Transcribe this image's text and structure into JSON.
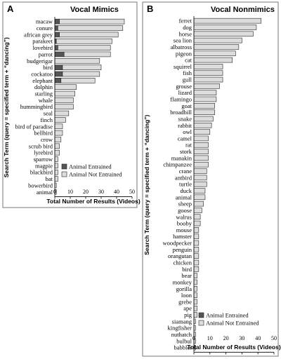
{
  "colors": {
    "entrained": "#555555",
    "not_entrained": "#dcdcdc",
    "bar_outline": "#222222",
    "frame": "#777777"
  },
  "chart_data": [
    {
      "type": "bar",
      "orientation": "horizontal",
      "stacked": true,
      "panel": "A",
      "title": "Vocal Mimics",
      "xlabel": "Total Number of Results (Videos)",
      "ylabel": "Search Term (query = specified term + “dancing”)",
      "xlim": [
        0,
        50
      ],
      "xticks": [
        0,
        10,
        20,
        30,
        40,
        50
      ],
      "legend": "bottom-right",
      "grid": false,
      "categories": [
        "macaw",
        "conure",
        "african grey",
        "parakeet",
        "lovebird",
        "parrot",
        "budgerigar",
        "bird",
        "cockatoo",
        "elephant",
        "dolphin",
        "starling",
        "whale",
        "hummingbird",
        "seal",
        "finch",
        "bird of paradise",
        "bellbird",
        "crow",
        "scrub bird",
        "lyrebird",
        "sparrow",
        "magpie",
        "blackbird",
        "bat",
        "bowerbird",
        "animal"
      ],
      "series": [
        {
          "name": "Animal Entrained",
          "values": [
            3,
            2,
            3,
            1,
            2,
            6,
            0,
            5,
            5,
            4,
            0,
            0,
            0,
            0,
            0,
            0,
            0,
            0,
            0,
            0,
            0,
            0,
            0,
            0,
            0,
            0,
            0
          ]
        },
        {
          "name": "Animal Not Entrained",
          "values": [
            42,
            42,
            38,
            36,
            34,
            30,
            29,
            25,
            24,
            22,
            14,
            13,
            12,
            12,
            9,
            7,
            5,
            5,
            4,
            3,
            3,
            2,
            2,
            2,
            2,
            1,
            1
          ]
        }
      ]
    },
    {
      "type": "bar",
      "orientation": "horizontal",
      "stacked": true,
      "panel": "B",
      "title": "Vocal Nonmimics",
      "xlabel": "Total Number of Results (Videos)",
      "ylabel": "Search Term (query = specified term + “dancing”)",
      "xlim": [
        0,
        50
      ],
      "xticks": [
        0,
        10,
        20,
        30,
        40,
        50
      ],
      "legend": "bottom-right",
      "grid": false,
      "categories": [
        "ferret",
        "dog",
        "horse",
        "sea lion",
        "albatross",
        "pigeon",
        "cat",
        "squirrel",
        "fish",
        "gull",
        "grouse",
        "lizard",
        "flamingo",
        "goat",
        "broadbill",
        "snake",
        "rabbit",
        "owl",
        "camel",
        "rat",
        "stork",
        "manakin",
        "chimpanzee",
        "crane",
        "antbird",
        "turtle",
        "duck",
        "animal",
        "sheep",
        "goose",
        "walrus",
        "booby",
        "mouse",
        "hamster",
        "woodpecker",
        "penguin",
        "orangutan",
        "chicken",
        "bird",
        "bear",
        "monkey",
        "gorilla",
        "loon",
        "grebe",
        "ape",
        "pig",
        "siamang",
        "kingfisher",
        "nuthatch",
        "bulbul",
        "babbler"
      ],
      "series": [
        {
          "name": "Animal Entrained",
          "values": [
            0,
            0,
            0,
            0,
            0,
            0,
            0,
            0,
            0,
            0,
            0,
            0,
            0,
            0,
            0,
            0,
            0,
            0,
            0,
            0,
            0,
            0,
            0,
            0,
            0,
            0,
            0,
            0,
            0,
            0,
            0,
            0,
            0,
            0,
            0,
            0,
            0,
            0,
            0,
            0,
            0,
            0,
            0,
            0,
            0,
            0,
            0,
            0,
            0,
            0,
            0
          ]
        },
        {
          "name": "Animal Not Entrained",
          "values": [
            42,
            39,
            37,
            30,
            28,
            26,
            24,
            18,
            18,
            18,
            16,
            14,
            14,
            13,
            13,
            12,
            11,
            10,
            9,
            9,
            9,
            9,
            9,
            8,
            8,
            8,
            7,
            7,
            6,
            5,
            4,
            4,
            3,
            3,
            3,
            3,
            3,
            3,
            3,
            2,
            2,
            2,
            2,
            2,
            2,
            2,
            1,
            1,
            1,
            1,
            1
          ]
        }
      ]
    }
  ]
}
